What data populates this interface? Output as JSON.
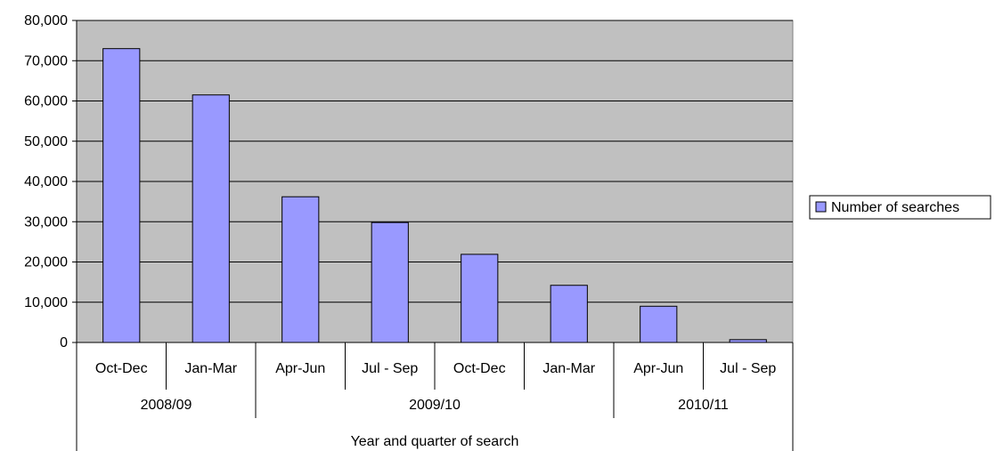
{
  "chart_data": {
    "type": "bar",
    "title": "",
    "xlabel": "Year and quarter of search",
    "ylabel": "",
    "ylim": [
      0,
      80000
    ],
    "yticks": [
      "0",
      "10,000",
      "20,000",
      "30,000",
      "40,000",
      "50,000",
      "60,000",
      "70,000",
      "80,000"
    ],
    "ytick_values": [
      0,
      10000,
      20000,
      30000,
      40000,
      50000,
      60000,
      70000,
      80000
    ],
    "categories": [
      "Oct-Dec",
      "Jan-Mar",
      "Apr-Jun",
      "Jul - Sep",
      "Oct-Dec",
      "Jan-Mar",
      "Apr-Jun",
      "Jul - Sep"
    ],
    "groups": [
      {
        "label": "2008/09",
        "count": 2
      },
      {
        "label": "2009/10",
        "count": 4
      },
      {
        "label": "2010/11",
        "count": 2
      }
    ],
    "series": [
      {
        "name": "Number of searches",
        "values": [
          73000,
          61500,
          36200,
          29800,
          21900,
          14200,
          9000,
          700
        ]
      }
    ],
    "grid": true,
    "legend": "right",
    "colors": {
      "bar": "#9999ff",
      "plot_bg": "#c0c0c0",
      "axis": "#000000"
    }
  }
}
